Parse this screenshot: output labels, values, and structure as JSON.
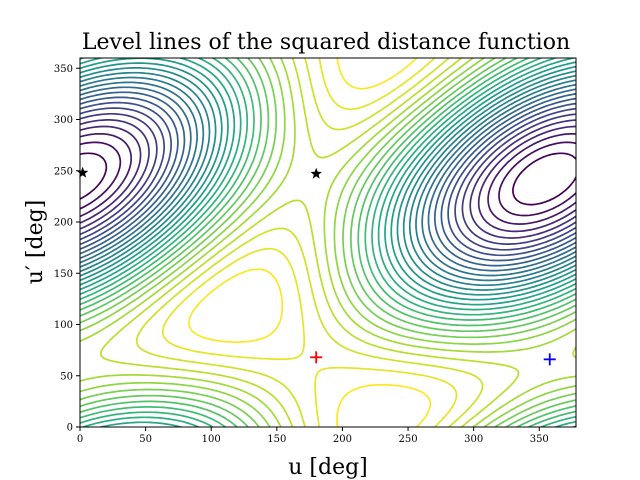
{
  "chart_data": {
    "type": "contour",
    "title": "Level lines of the squared distance function",
    "xlabel": "u [deg]",
    "ylabel": "u′ [deg]",
    "xlim": [
      0,
      378
    ],
    "ylim": [
      0,
      360
    ],
    "x_ticks": [
      0,
      50,
      100,
      150,
      200,
      250,
      300,
      350
    ],
    "y_ticks": [
      0,
      50,
      100,
      150,
      200,
      250,
      300,
      350
    ],
    "grid": false,
    "colormap": "viridis",
    "levels": 30,
    "function": {
      "center_min": [
        175,
        62
      ],
      "center_max": [
        355,
        298
      ],
      "amplitude_u": 1.0,
      "amplitude_coupling": 0.85,
      "amplitude_v": 1.0
    },
    "markers": [
      {
        "symbol": "+",
        "x": 180,
        "y": 68,
        "color": "#ff0000"
      },
      {
        "symbol": "+",
        "x": 358,
        "y": 66,
        "color": "#0000ff"
      },
      {
        "symbol": "★",
        "x": 2,
        "y": 248,
        "color": "#000000"
      },
      {
        "symbol": "★",
        "x": 180,
        "y": 247,
        "color": "#000000"
      }
    ]
  }
}
